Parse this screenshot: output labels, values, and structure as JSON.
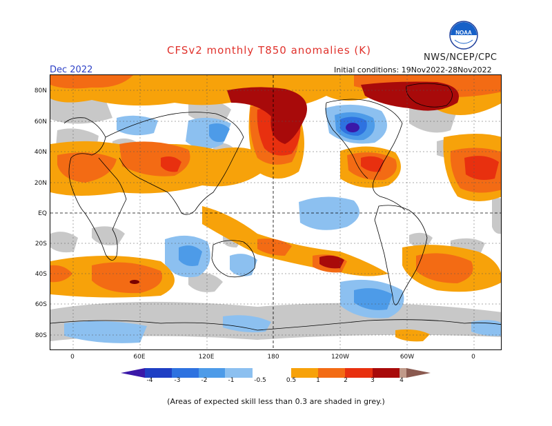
{
  "header": {
    "title": "CFSv2 monthly T850 anomalies (K)",
    "agency": "NWS/NCEP/CPC",
    "logo_text": "NOAA",
    "month": "Dec 2022",
    "initial_conditions": "Initial conditions: 19Nov2022-28Nov2022"
  },
  "map": {
    "lat_labels": [
      "80N",
      "60N",
      "40N",
      "20N",
      "EQ",
      "20S",
      "40S",
      "60S",
      "80S"
    ],
    "lon_labels": [
      "0",
      "60E",
      "120E",
      "180",
      "120W",
      "60W",
      "0"
    ],
    "colors": {
      "ocean_land": "#ffffff",
      "low_skill": "#c8c8c8",
      "coast": "#000000"
    }
  },
  "colorbar": {
    "labels": [
      "-4",
      "-3",
      "-2",
      "-1",
      "-0.5",
      "0.5",
      "1",
      "2",
      "3",
      "4"
    ],
    "colors": [
      "#3a18a8",
      "#1f3fc4",
      "#2e72e0",
      "#4d9be8",
      "#8cc0f0",
      "#ffffff",
      "#f7a20a",
      "#f36b14",
      "#e8300f",
      "#a80a0a",
      "#c09a8a",
      "#8a5a50"
    ]
  },
  "footer": {
    "note": "(Areas of expected skill less than 0.3 are shaded in grey.)"
  }
}
